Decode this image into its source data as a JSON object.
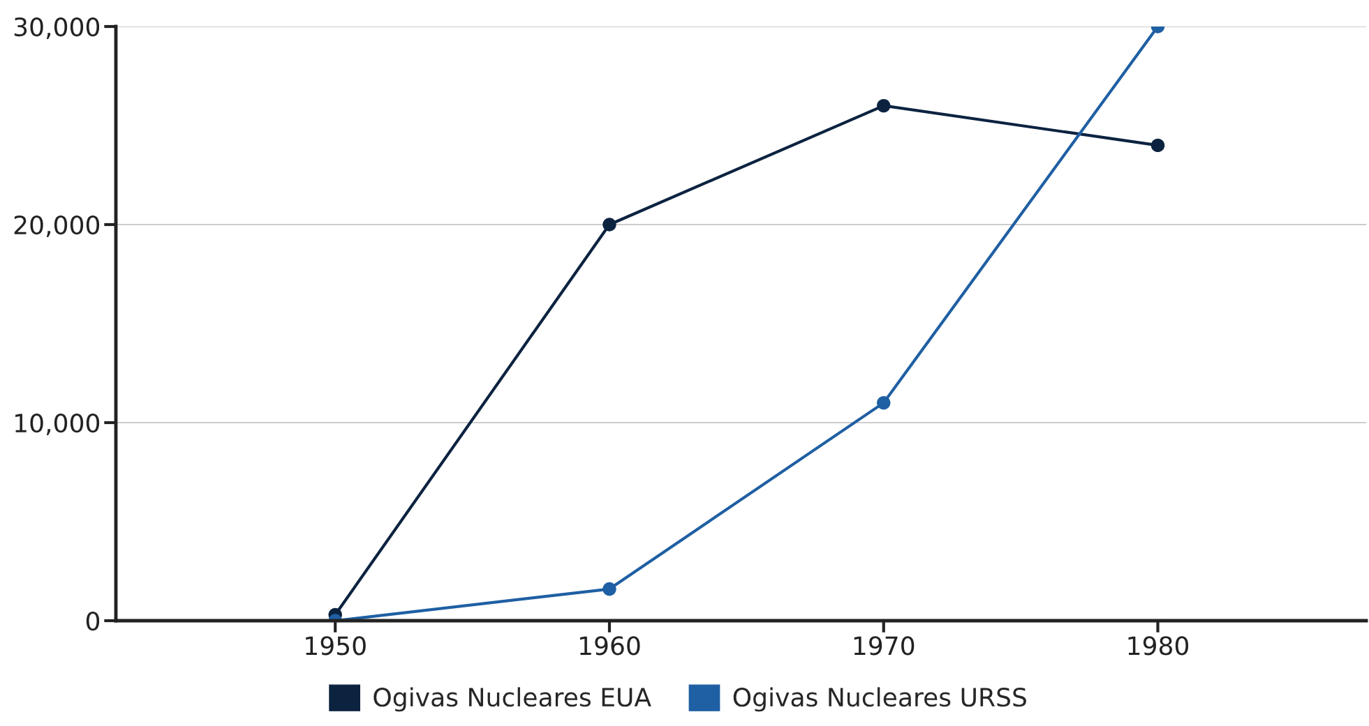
{
  "chart_data": {
    "type": "line",
    "x": [
      1950,
      1960,
      1970,
      1980
    ],
    "series": [
      {
        "name": "Ogivas Nucleares EUA",
        "color": "#0c2340",
        "values": [
          300,
          20000,
          26000,
          24000
        ]
      },
      {
        "name": "Ogivas Nucleares URSS",
        "color": "#1f5fa3",
        "values": [
          0,
          1600,
          11000,
          30000
        ]
      }
    ],
    "xlim": [
      1942,
      1987.6
    ],
    "xticks": [
      1950,
      1960,
      1970,
      1980
    ],
    "ylim": [
      0,
      30000
    ],
    "yticks": [
      {
        "value": 0,
        "label": "0"
      },
      {
        "value": 10000,
        "label": "10,000"
      },
      {
        "value": 20000,
        "label": "20,000"
      },
      {
        "value": 30000,
        "label": "30,000"
      }
    ],
    "grid": "y",
    "legend": "bottom",
    "marker": "circle",
    "line_style": "solid"
  }
}
